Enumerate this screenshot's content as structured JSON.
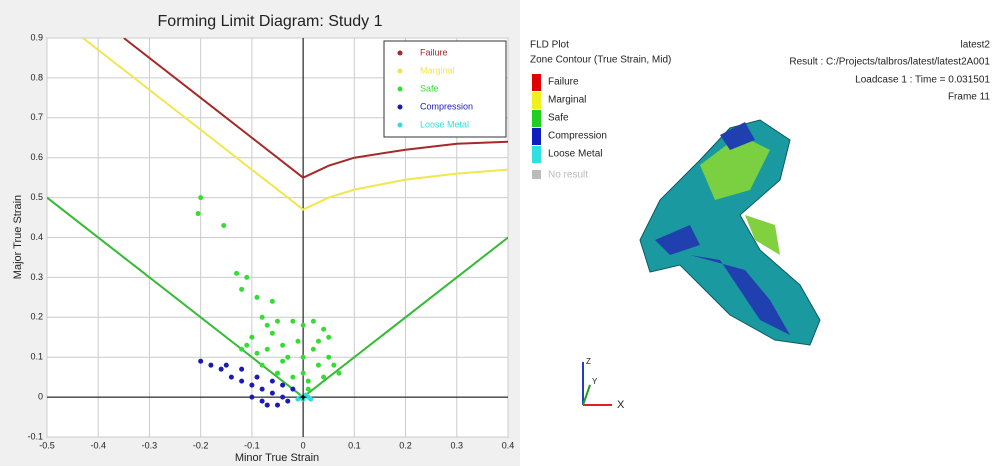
{
  "chart_data": {
    "type": "scatter",
    "title": "Forming Limit Diagram: Study 1",
    "xlabel": "Minor True Strain",
    "ylabel": "Major True Strain",
    "xlim": [
      -0.5,
      0.4
    ],
    "xticks": [
      -0.5,
      -0.4,
      -0.3,
      -0.2,
      -0.1,
      0,
      0.1,
      0.2,
      0.3,
      0.4
    ],
    "ylim": [
      -0.1,
      0.9
    ],
    "yticks": [
      -0.1,
      0,
      0.1,
      0.2,
      0.3,
      0.4,
      0.5,
      0.6,
      0.7,
      0.8,
      0.9
    ],
    "grid": true,
    "legend": "upper right",
    "series": [
      {
        "name": "Failure",
        "type": "line",
        "color": "#a52a2a",
        "x": [
          -0.35,
          -0.2,
          -0.1,
          0,
          0.05,
          0.1,
          0.2,
          0.3,
          0.4
        ],
        "values": [
          0.9,
          0.75,
          0.65,
          0.55,
          0.58,
          0.6,
          0.62,
          0.635,
          0.64
        ]
      },
      {
        "name": "Marginal",
        "type": "line",
        "color": "#f2e650",
        "x": [
          -0.43,
          -0.3,
          -0.2,
          -0.1,
          0,
          0.05,
          0.1,
          0.2,
          0.3,
          0.4
        ],
        "values": [
          0.9,
          0.77,
          0.67,
          0.57,
          0.47,
          0.5,
          0.52,
          0.545,
          0.56,
          0.57
        ]
      },
      {
        "name": "Safe",
        "type": "scatter",
        "color": "#33dd33",
        "x": [
          -0.2,
          -0.205,
          -0.155,
          -0.13,
          -0.12,
          -0.11,
          -0.09,
          -0.06,
          -0.08,
          -0.05,
          -0.02,
          0,
          0.02,
          0.04,
          -0.1,
          -0.07,
          -0.04,
          -0.01,
          0.02,
          0.05,
          0.07,
          0.04,
          -0.08,
          -0.12,
          -0.05,
          -0.02,
          0.01,
          0.03,
          -0.03,
          0,
          -0.06,
          0.03,
          -0.09,
          0.01,
          -0.11,
          0.06,
          -0.04,
          0.0,
          0.05,
          -0.07
        ],
        "values": [
          0.5,
          0.46,
          0.43,
          0.31,
          0.27,
          0.3,
          0.25,
          0.24,
          0.2,
          0.19,
          0.19,
          0.18,
          0.19,
          0.17,
          0.15,
          0.12,
          0.13,
          0.14,
          0.12,
          0.1,
          0.06,
          0.05,
          0.08,
          0.12,
          0.06,
          0.05,
          0.04,
          0.08,
          0.1,
          0.1,
          0.16,
          0.14,
          0.11,
          0.02,
          0.13,
          0.08,
          0.09,
          0.06,
          0.15,
          0.18
        ]
      },
      {
        "name": "Compression",
        "type": "scatter",
        "color": "#1a1ab4",
        "x": [
          -0.2,
          -0.18,
          -0.16,
          -0.14,
          -0.12,
          -0.1,
          -0.08,
          -0.06,
          -0.04,
          -0.03,
          -0.05,
          -0.1,
          -0.08,
          -0.02,
          -0.12,
          -0.09,
          -0.06,
          -0.04,
          -0.15,
          -0.07
        ],
        "values": [
          0.09,
          0.08,
          0.07,
          0.05,
          0.04,
          0.03,
          0.02,
          0.01,
          0.0,
          -0.01,
          -0.02,
          0.0,
          -0.01,
          0.02,
          0.07,
          0.05,
          0.04,
          0.03,
          0.08,
          -0.02
        ]
      },
      {
        "name": "Loose Metal",
        "type": "scatter",
        "color": "#33dddd",
        "x": [
          -0.005,
          0,
          0.01,
          0.005,
          -0.01,
          0.015
        ],
        "values": [
          0,
          -0.005,
          0,
          0.005,
          -0.005,
          -0.005
        ]
      }
    ],
    "safe_boundary": {
      "color": "#33bb33",
      "x": [
        -0.5,
        0,
        0.4
      ],
      "values": [
        0.5,
        0,
        0.4
      ]
    }
  },
  "viewer": {
    "title": "FLD Plot",
    "subtitle": "Zone Contour (True Strain, Mid)",
    "legend": [
      "Failure",
      "Marginal",
      "Safe",
      "Compression",
      "Loose Metal",
      "No result"
    ],
    "info": [
      "latest2",
      "Result : C:/Projects/talbros/latest/latest2A001",
      "Loadcase 1 : Time = 0.031501",
      "Frame 11"
    ],
    "axes": [
      "Z",
      "Y",
      "X"
    ]
  }
}
